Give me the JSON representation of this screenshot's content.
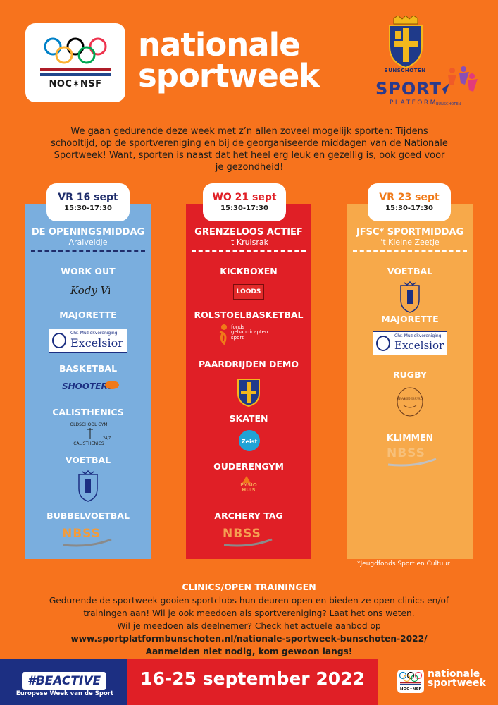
{
  "header": {
    "noc_label": "NOC✶NSF",
    "title_line1": "nationale",
    "title_line2": "sportweek",
    "crest_caption": "BUNSCHOTEN",
    "sport_label": "SPORT",
    "platform_label": "PLATFORM",
    "platform_sub": "BUNSCHOTEN"
  },
  "intro": "We gaan gedurende deze week met z’n allen zoveel mogelijk sporten: Tijdens schooltijd, op de sportvereniging en bij de georganiseerde middagen van de Nationale Sportweek! Want, sporten is naast dat het heel erg leuk en gezellig is, ook goed voor je gezondheid!",
  "colors": {
    "background": "#f7731d",
    "blue": "#7aaede",
    "red": "#e01f26",
    "yellow": "#f7a94a",
    "navy": "#1c2f82"
  },
  "columns": [
    {
      "date": "VR 16 sept",
      "time": "15:30-17:30",
      "title": "DE OPENINGSMIDDAG",
      "location": "Aralveldje",
      "activities": [
        "WORK OUT",
        "MAJORETTE",
        "BASKETBAL",
        "CALISTHENICS",
        "VOETBAL",
        "BUBBELVOETBAL"
      ],
      "logos": {
        "kody": "Kody Vibe",
        "excelsior_top": "Chr. Muziekvereniging",
        "excelsior": "Excelsior",
        "shooters": "SHOOTERS",
        "oldschool": "OLDSCHOOL GYM",
        "calisthenics": "CALISTHENICS",
        "calisthenics_247": "24/7",
        "nbss": "NBSS"
      }
    },
    {
      "date": "WO 21 sept",
      "time": "15:30-17:30",
      "title": "GRENZELOOS ACTIEF",
      "location": "'t Kruisrak",
      "activities": [
        "KICKBOXEN",
        "ROLSTOELBASKETBAL",
        "PAARDRIJDEN DEMO",
        "SKATEN",
        "OUDERENGYM",
        "ARCHERY TAG"
      ],
      "logos": {
        "loods": "LOODS",
        "fonds_line1": "fonds",
        "fonds_line2": "gehandicapten",
        "fonds_line3": "sport",
        "zeist": "Zeist",
        "fysio_line1": "FYSIO",
        "fysio_line2": "HUIS",
        "nbss": "NBSS"
      }
    },
    {
      "date": "VR 23 sept",
      "time": "15:30-17:30",
      "title": "JFSC* SPORTMIDDAG",
      "location": "'t Kleine Zeetje",
      "activities": [
        "VOETBAL",
        "MAJORETTE",
        "RUGBY",
        "KLIMMEN"
      ],
      "logos": {
        "excelsior_top": "Chr. Muziekvereniging",
        "excelsior": "Excelsior",
        "rugby": "SPAKENBURG",
        "nbss": "NBSS"
      }
    }
  ],
  "footnote": "*Jeugdfonds Sport en Cultuur",
  "clinics": {
    "title": "CLINICS/OPEN TRAININGEN",
    "line1": "Gedurende de sportweek gooien sportclubs hun deuren open en bieden ze open clinics en/of",
    "line2": "trainingen aan! Wil je ook meedoen als sportvereniging? Laat het ons weten.",
    "line3": "Wil je meedoen als deelnemer? Check het actuele aanbod op",
    "url": "www.sportplatformbunschoten.nl/nationale-sportweek-bunschoten-2022/",
    "cta": "Aanmelden niet nodig, kom gewoon langs!"
  },
  "footer": {
    "beactive": "#BEACTIVE",
    "beactive_sub": "Europese Week van de Sport",
    "dates": "16-25 september 2022",
    "noc_label": "NOC✶NSF",
    "title_line1": "nationale",
    "title_line2": "sportweek"
  }
}
